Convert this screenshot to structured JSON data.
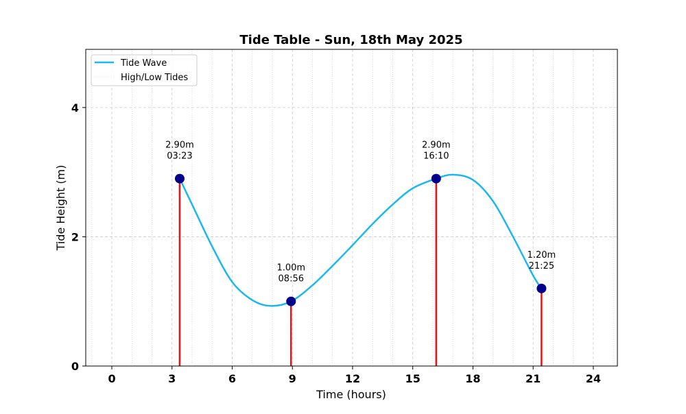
{
  "chart_data": {
    "type": "line",
    "title": "Tide Table - Sun, 18th May 2025",
    "xlabel": "Time (hours)",
    "ylabel": "Tide Height (m)",
    "xlim": [
      -1.3,
      25.2
    ],
    "ylim": [
      0,
      4.9
    ],
    "xticks": [
      0,
      3,
      6,
      9,
      12,
      15,
      18,
      21,
      24
    ],
    "xtick_labels": [
      "0",
      "3",
      "6",
      "9",
      "12",
      "15",
      "18",
      "21",
      "24"
    ],
    "yticks": [
      0,
      2,
      4
    ],
    "ytick_labels": [
      "0",
      "2",
      "4"
    ],
    "minor_x_grid_step": 1,
    "grid": true,
    "legend_position": "top-left",
    "series": [
      {
        "name": "Tide Wave",
        "color": "#1ab8f0",
        "x": [
          3.383,
          4.0,
          5.0,
          6.0,
          7.0,
          7.9,
          8.933,
          10.0,
          11.0,
          12.0,
          13.0,
          14.0,
          15.0,
          16.167,
          17.0,
          18.0,
          19.0,
          20.0,
          21.0,
          21.417
        ],
        "y": [
          2.9,
          2.5,
          1.85,
          1.3,
          1.02,
          0.93,
          1.0,
          1.25,
          1.55,
          1.87,
          2.2,
          2.5,
          2.75,
          2.9,
          2.96,
          2.88,
          2.55,
          2.0,
          1.4,
          1.2
        ]
      }
    ],
    "tides_legend_name": "High/Low Tides",
    "tides": [
      {
        "time_hours": 3.383,
        "height": 2.9,
        "height_label": "2.90m",
        "time_label": "03:23"
      },
      {
        "time_hours": 8.933,
        "height": 1.0,
        "height_label": "1.00m",
        "time_label": "08:56"
      },
      {
        "time_hours": 16.167,
        "height": 2.9,
        "height_label": "2.90m",
        "time_label": "16:10"
      },
      {
        "time_hours": 21.417,
        "height": 1.2,
        "height_label": "1.20m",
        "time_label": "21:25"
      }
    ],
    "colors": {
      "wave": "#1ab8f0",
      "stem": "#ee1111",
      "marker": "#00008b",
      "grid": "#cccccc"
    }
  }
}
